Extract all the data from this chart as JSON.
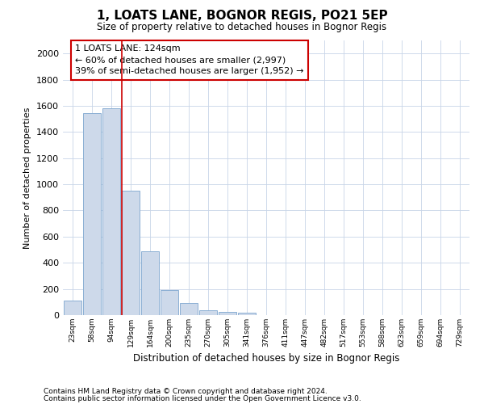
{
  "title": "1, LOATS LANE, BOGNOR REGIS, PO21 5EP",
  "subtitle": "Size of property relative to detached houses in Bognor Regis",
  "xlabel": "Distribution of detached houses by size in Bognor Regis",
  "ylabel": "Number of detached properties",
  "footnote1": "Contains HM Land Registry data © Crown copyright and database right 2024.",
  "footnote2": "Contains public sector information licensed under the Open Government Licence v3.0.",
  "categories": [
    "23sqm",
    "58sqm",
    "94sqm",
    "129sqm",
    "164sqm",
    "200sqm",
    "235sqm",
    "270sqm",
    "305sqm",
    "341sqm",
    "376sqm",
    "411sqm",
    "447sqm",
    "482sqm",
    "517sqm",
    "553sqm",
    "588sqm",
    "623sqm",
    "659sqm",
    "694sqm",
    "729sqm"
  ],
  "values": [
    110,
    1545,
    1580,
    950,
    485,
    192,
    93,
    40,
    25,
    18,
    0,
    0,
    0,
    0,
    0,
    0,
    0,
    0,
    0,
    0,
    0
  ],
  "bar_color": "#cdd9ea",
  "bar_edge_color": "#8bafd4",
  "annotation_text": "1 LOATS LANE: 124sqm\n← 60% of detached houses are smaller (2,997)\n39% of semi-detached houses are larger (1,952) →",
  "annotation_box_color": "#ffffff",
  "annotation_box_edge": "#cc0000",
  "ylim": [
    0,
    2100
  ],
  "yticks": [
    0,
    200,
    400,
    600,
    800,
    1000,
    1200,
    1400,
    1600,
    1800,
    2000
  ],
  "background_color": "#ffffff",
  "grid_color": "#c8d4e8",
  "red_line_index": 3
}
